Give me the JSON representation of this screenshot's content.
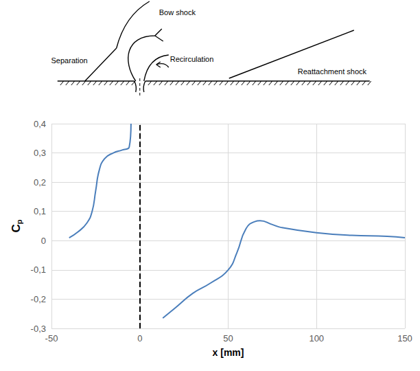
{
  "chart_data": {
    "type": "line",
    "xlabel": "x [mm]",
    "ylabel": "Cp",
    "x": [
      -40,
      -35,
      -30,
      -27,
      -25,
      -23,
      -20,
      -15,
      -10,
      -6,
      -5,
      null,
      13,
      20,
      30,
      40,
      50,
      55,
      60,
      65,
      68,
      75,
      80,
      100,
      120,
      140,
      150
    ],
    "values": [
      0.01,
      0.03,
      0.06,
      0.1,
      0.17,
      0.24,
      0.28,
      0.3,
      0.31,
      0.32,
      0.4,
      null,
      -0.265,
      -0.23,
      -0.18,
      -0.145,
      -0.1,
      -0.04,
      0.04,
      0.065,
      0.068,
      0.055,
      0.045,
      0.027,
      0.018,
      0.015,
      0.01
    ],
    "color": "#4a7ebb",
    "line_style": "solid",
    "xlim": [
      -50,
      150
    ],
    "xticks": [
      -50,
      0,
      50,
      100,
      150
    ],
    "ylim": [
      -0.3,
      0.4
    ],
    "yticks": [
      {
        "value": -0.3,
        "label": "-0,3"
      },
      {
        "value": -0.2,
        "label": "-0,2"
      },
      {
        "value": -0.1,
        "label": "-0,1"
      },
      0,
      {
        "value": 0.1,
        "label": "0,1"
      },
      {
        "value": 0.2,
        "label": "0,2"
      },
      {
        "value": 0.3,
        "label": "0,3"
      },
      {
        "value": 0.4,
        "label": "0,4"
      }
    ],
    "grid": true,
    "markline_x": 0
  },
  "diagram": {
    "bow_shock": "Bow shock",
    "separation": "Separation",
    "recirculation": "Recirculation",
    "reattachment_shock": "Reattachment shock"
  }
}
